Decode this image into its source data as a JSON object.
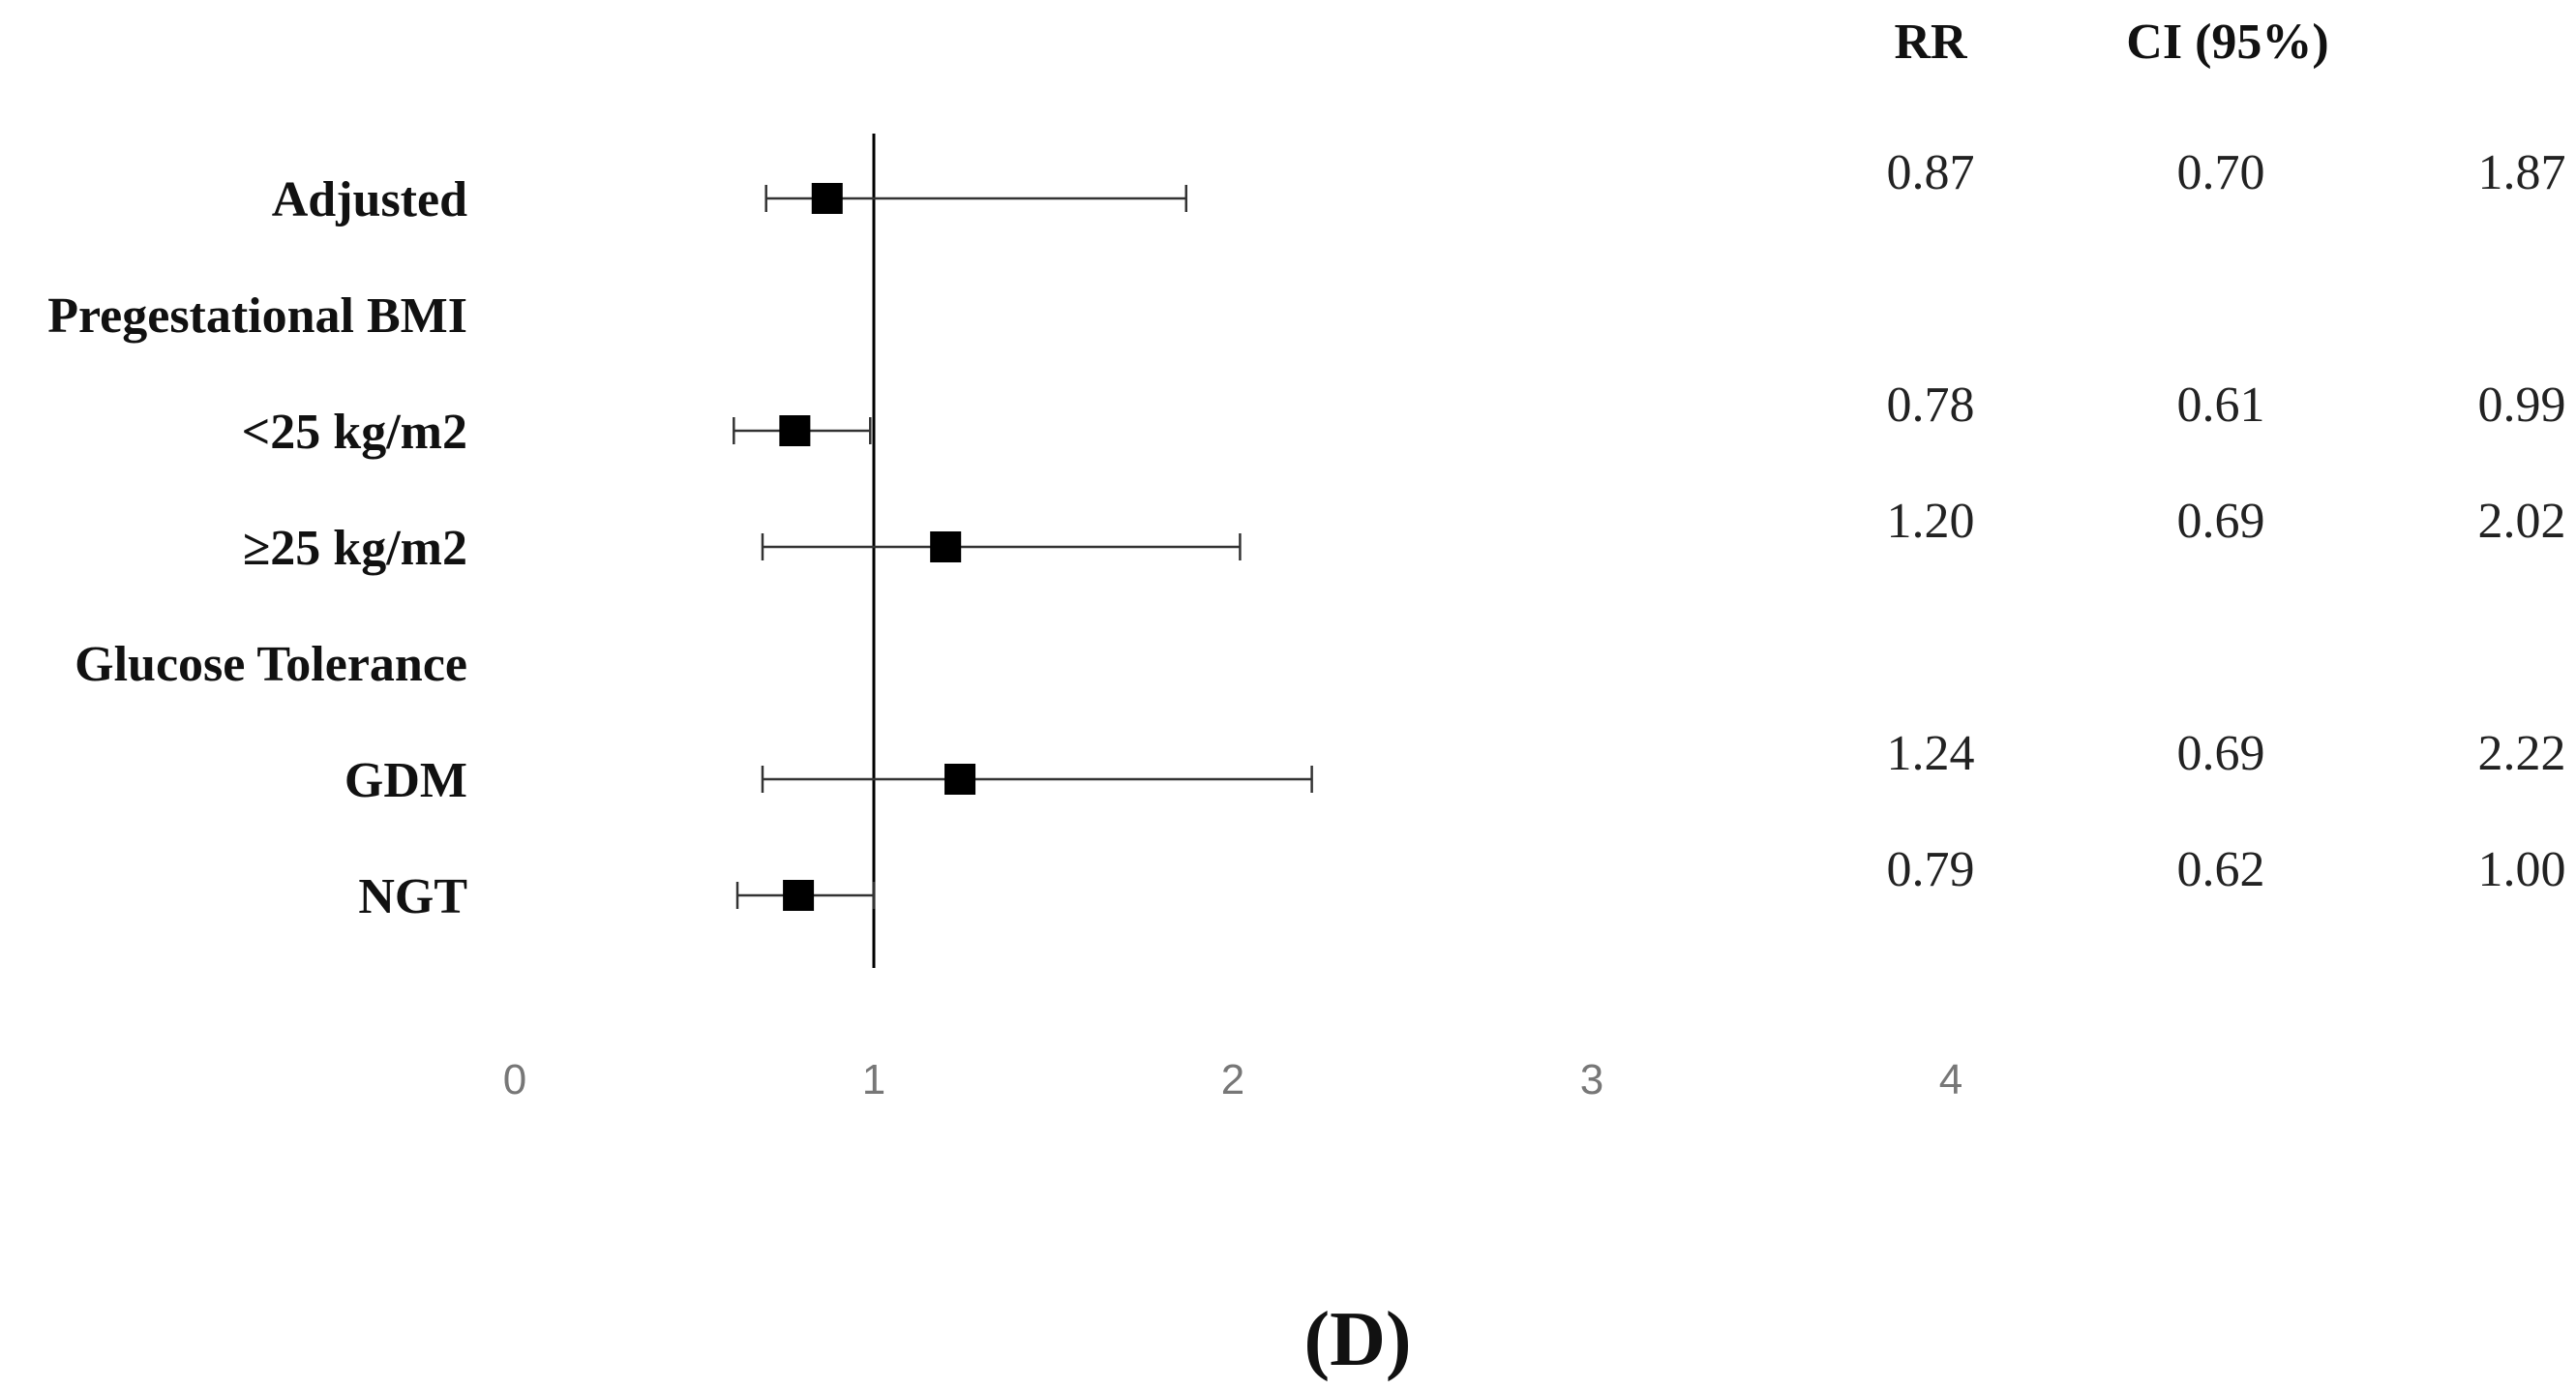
{
  "chart_data": {
    "type": "forest",
    "panel_label": "(D)",
    "columns": {
      "rr": "RR",
      "ci": "CI (95%)"
    },
    "x_ticks": [
      "0",
      "1",
      "2",
      "3",
      "4"
    ],
    "xlim": [
      0,
      4
    ],
    "reference_line": 1,
    "rows": [
      {
        "label": "Adjusted",
        "header": false,
        "rr": 0.87,
        "lo": 0.7,
        "hi": 1.87,
        "rr_text": "0.87",
        "lo_text": "0.70",
        "hi_text": "1.87"
      },
      {
        "label": "Pregestational BMI",
        "header": true
      },
      {
        "label": "<25 kg/m2",
        "header": false,
        "rr": 0.78,
        "lo": 0.61,
        "hi": 0.99,
        "rr_text": "0.78",
        "lo_text": "0.61",
        "hi_text": "0.99"
      },
      {
        "label": "≥25 kg/m2",
        "header": false,
        "rr": 1.2,
        "lo": 0.69,
        "hi": 2.02,
        "rr_text": "1.20",
        "lo_text": "0.69",
        "hi_text": "2.02"
      },
      {
        "label": "Glucose Tolerance",
        "header": true
      },
      {
        "label": "GDM",
        "header": false,
        "rr": 1.24,
        "lo": 0.69,
        "hi": 2.22,
        "rr_text": "1.24",
        "lo_text": "0.69",
        "hi_text": "2.22"
      },
      {
        "label": "NGT",
        "header": false,
        "rr": 0.79,
        "lo": 0.62,
        "hi": 1.0,
        "rr_text": "0.79",
        "lo_text": "0.62",
        "hi_text": "1.00"
      }
    ]
  }
}
